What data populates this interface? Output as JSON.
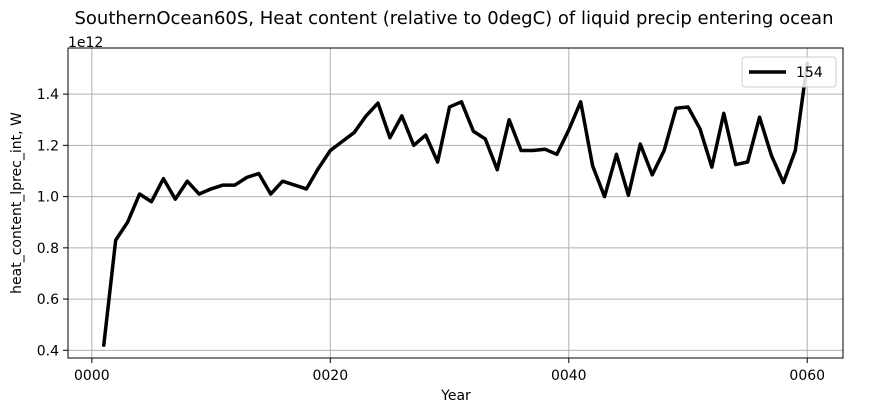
{
  "chart_data": {
    "type": "line",
    "title": "SouthernOcean60S, Heat content (relative to 0degC) of liquid precip entering ocean",
    "xlabel": "Year",
    "ylabel": "heat_content_lprec_int, W",
    "y_offset_label": "1e12",
    "xlim": [
      -2,
      63
    ],
    "ylim": [
      0.37,
      1.58
    ],
    "x_ticks": [
      0,
      20,
      40,
      60
    ],
    "x_tick_labels": [
      "0000",
      "0020",
      "0040",
      "0060"
    ],
    "y_ticks": [
      0.4,
      0.6,
      0.8,
      1.0,
      1.2,
      1.4
    ],
    "y_tick_labels": [
      "0.4",
      "0.6",
      "0.8",
      "1.0",
      "1.2",
      "1.4"
    ],
    "grid": true,
    "legend_position": "top-right",
    "series": [
      {
        "name": "154",
        "color": "#000000",
        "x": [
          1,
          2,
          3,
          4,
          5,
          6,
          7,
          8,
          9,
          10,
          11,
          12,
          13,
          14,
          15,
          16,
          17,
          18,
          19,
          20,
          21,
          22,
          23,
          24,
          25,
          26,
          27,
          28,
          29,
          30,
          31,
          32,
          33,
          34,
          35,
          36,
          37,
          38,
          39,
          40,
          41,
          42,
          43,
          44,
          45,
          46,
          47,
          48,
          49,
          50,
          51,
          52,
          53,
          54,
          55,
          56,
          57,
          58,
          59,
          60
        ],
        "values": [
          0.42,
          0.83,
          0.9,
          1.01,
          0.98,
          1.07,
          0.99,
          1.06,
          1.01,
          1.03,
          1.045,
          1.045,
          1.075,
          1.09,
          1.01,
          1.06,
          1.045,
          1.03,
          1.11,
          1.18,
          1.215,
          1.25,
          1.315,
          1.365,
          1.23,
          1.315,
          1.2,
          1.24,
          1.135,
          1.35,
          1.37,
          1.255,
          1.225,
          1.105,
          1.3,
          1.18,
          1.18,
          1.185,
          1.165,
          1.26,
          1.37,
          1.12,
          1.0,
          1.165,
          1.005,
          1.205,
          1.085,
          1.18,
          1.345,
          1.35,
          1.265,
          1.115,
          1.325,
          1.125,
          1.135,
          1.31,
          1.16,
          1.055,
          1.18,
          1.52
        ]
      }
    ]
  }
}
